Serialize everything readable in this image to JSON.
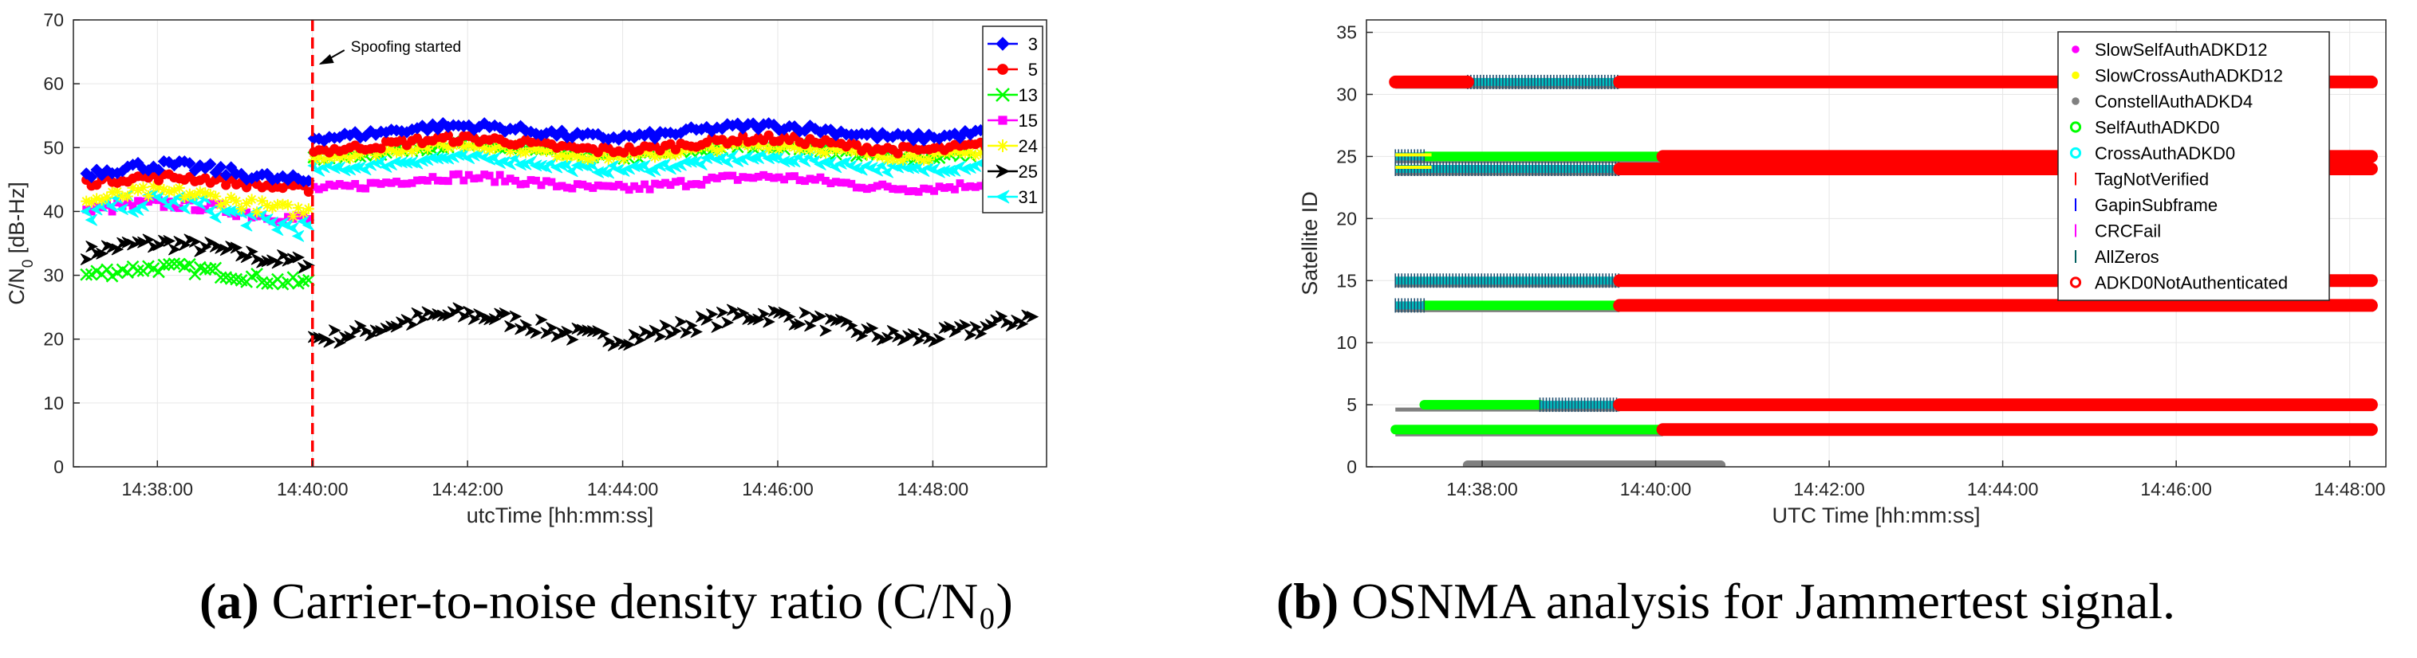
{
  "captions": {
    "a": {
      "letter": "(a)",
      "text": "Carrier-to-noise density ratio (C/N₀)"
    },
    "b": {
      "letter": "(b)",
      "text": "OSNMA analysis for Jammertest signal."
    }
  },
  "chart_data": [
    {
      "type": "scatter",
      "panel": "a",
      "xlabel": "utcTime [hh:mm:ss]",
      "ylabel": "C/N0 [dB-Hz]",
      "xlim": [
        "14:36:55",
        "14:49:28"
      ],
      "ylim": [
        0,
        70
      ],
      "xticks": [
        "14:38:00",
        "14:40:00",
        "14:42:00",
        "14:44:00",
        "14:46:00",
        "14:48:00"
      ],
      "yticks": [
        0,
        10,
        20,
        30,
        40,
        50,
        60,
        70
      ],
      "grid": true,
      "legend_position": "top-right",
      "annotation": {
        "text": "Spoofing started",
        "x": "14:40:00"
      },
      "series": [
        {
          "name": "3",
          "color": "#0000ff",
          "marker": "diamond",
          "before": [
            44,
            48
          ],
          "after": [
            51,
            54
          ],
          "end": "14:49:10"
        },
        {
          "name": "5",
          "color": "#ff0000",
          "marker": "circle",
          "before": [
            43,
            46
          ],
          "after": [
            49,
            52
          ],
          "end": "14:49:10"
        },
        {
          "name": "13",
          "color": "#00ff00",
          "marker": "x",
          "before": [
            28,
            32
          ],
          "after": [
            48,
            51
          ],
          "end": "14:48:30"
        },
        {
          "name": "15",
          "color": "#ff00ff",
          "marker": "square",
          "before": [
            38,
            42
          ],
          "after": [
            43,
            46
          ],
          "end": "14:49:10"
        },
        {
          "name": "24",
          "color": "#ffff00",
          "marker": "star",
          "before": [
            39,
            44
          ],
          "after": [
            48,
            51
          ],
          "end": "14:49:10"
        },
        {
          "name": "25",
          "color": "#000000",
          "marker": "triangle-right",
          "before": [
            31,
            36
          ],
          "after": [
            19,
            25
          ],
          "end": "14:49:20"
        },
        {
          "name": "31",
          "color": "#00ffff",
          "marker": "triangle-left",
          "before": [
            36,
            43
          ],
          "after": [
            46,
            49
          ],
          "end": "14:49:10"
        }
      ]
    },
    {
      "type": "scatter",
      "panel": "b",
      "xlabel": "UTC Time [hh:mm:ss]",
      "ylabel": "Satellite ID",
      "xlim": [
        "14:36:40",
        "14:48:25"
      ],
      "ylim": [
        0,
        36
      ],
      "xticks": [
        "14:38:00",
        "14:40:00",
        "14:42:00",
        "14:44:00",
        "14:46:00",
        "14:48:00"
      ],
      "yticks": [
        0,
        5,
        10,
        15,
        20,
        25,
        30,
        35
      ],
      "grid": true,
      "legend_position": "top-right",
      "legend": [
        {
          "name": "SlowSelfAuthADKD12",
          "color": "#ff00ff",
          "marker": "dot"
        },
        {
          "name": "SlowCrossAuthADKD12",
          "color": "#ffff00",
          "marker": "dot"
        },
        {
          "name": "ConstellAuthADKD4",
          "color": "#808080",
          "marker": "dot"
        },
        {
          "name": "SelfAuthADKD0",
          "color": "#00ff00",
          "marker": "ring"
        },
        {
          "name": "CrossAuthADKD0",
          "color": "#00ffff",
          "marker": "ring"
        },
        {
          "name": "TagNotVerified",
          "color": "#ff0000",
          "marker": "tick"
        },
        {
          "name": "GapinSubframe",
          "color": "#0000ff",
          "marker": "tick"
        },
        {
          "name": "CRCFail",
          "color": "#ff00ff",
          "marker": "tick"
        },
        {
          "name": "AllZeros",
          "color": "#006060",
          "marker": "tick"
        },
        {
          "name": "ADKD0NotAuthenticated",
          "color": "#ff0000",
          "marker": "ring"
        }
      ],
      "satellites": [
        {
          "id": 31,
          "teal": [
            "14:37:50",
            "14:39:35"
          ],
          "green": null,
          "red_after": "14:39:35"
        },
        {
          "id": 25,
          "teal": [
            "14:37:00",
            "14:37:20"
          ],
          "green": [
            "14:37:20",
            "14:40:05"
          ],
          "red_after": "14:40:05"
        },
        {
          "id": 24,
          "teal": [
            "14:37:00",
            "14:39:35"
          ],
          "green": null,
          "red_after": "14:39:35"
        },
        {
          "id": 15,
          "teal": [
            "14:37:00",
            "14:39:35"
          ],
          "green": null,
          "red_after": "14:39:35"
        },
        {
          "id": 13,
          "teal": [
            "14:37:00",
            "14:37:20"
          ],
          "green": [
            "14:37:20",
            "14:39:35"
          ],
          "red_after": "14:39:35"
        },
        {
          "id": 5,
          "teal": [
            "14:38:40",
            "14:39:35"
          ],
          "green": [
            "14:37:20",
            "14:38:40"
          ],
          "red_after": "14:39:35"
        },
        {
          "id": 3,
          "teal": null,
          "green": [
            "14:37:00",
            "14:40:05"
          ],
          "red_after": "14:40:05"
        }
      ],
      "constell_auth_y0": [
        "14:37:50",
        "14:40:45"
      ]
    }
  ]
}
